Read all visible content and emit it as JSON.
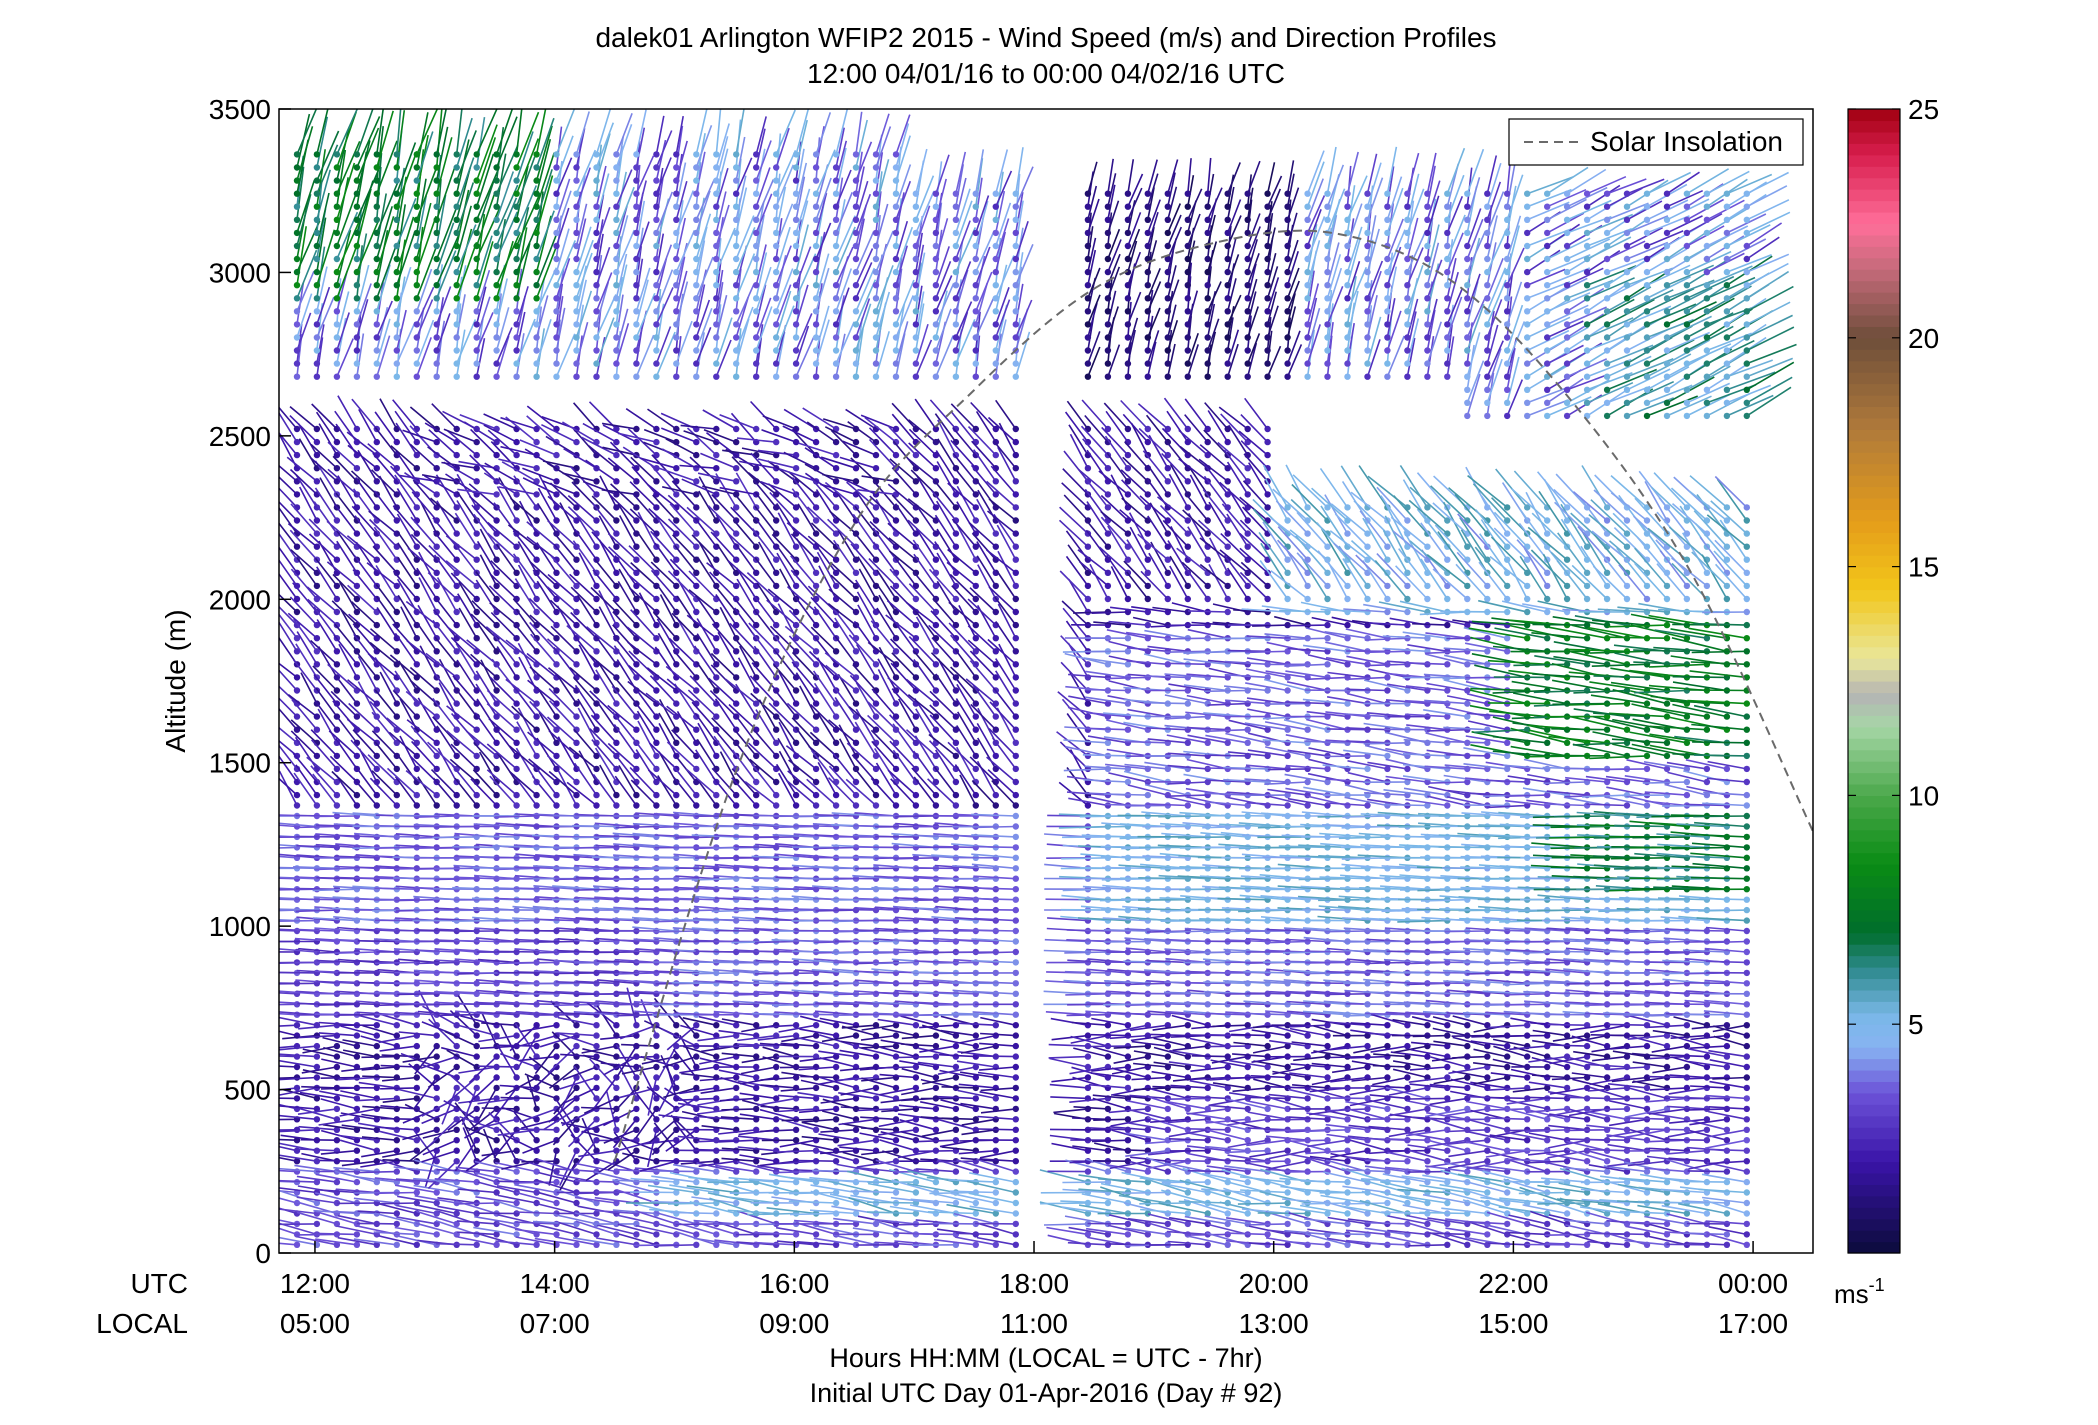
{
  "chart_data": {
    "type": "scatter",
    "subtype": "wind barb profile (wind direction sticks colored by speed)",
    "title_line1": "dalek01 Arlington WFIP2 2015 - Wind Speed (m/s) and Direction Profiles",
    "title_line2": "12:00 04/01/16 to 00:00 04/02/16  UTC",
    "ylabel": "Altitude (m)",
    "xlabel_line1": "Hours HH:MM  (LOCAL = UTC - 7hr)",
    "xlabel_line2": "Initial UTC Day 01-Apr-2016 (Day # 92)",
    "xaxis_row_labels": {
      "utc": "UTC",
      "local": "LOCAL"
    },
    "ylim": [
      0,
      3500
    ],
    "yticks": [
      0,
      500,
      1000,
      1500,
      2000,
      2500,
      3000,
      3500
    ],
    "ytick_labels": [
      "0",
      "500",
      "1000",
      "1500",
      "2000",
      "2500",
      "3000",
      "3500"
    ],
    "xlim_hours_utc": [
      11.7,
      24.5
    ],
    "xticks_hours_utc": [
      12,
      14,
      16,
      18,
      20,
      22,
      24
    ],
    "xtick_labels_utc": [
      "12:00",
      "14:00",
      "16:00",
      "18:00",
      "20:00",
      "22:00",
      "00:00"
    ],
    "xtick_labels_local": [
      "05:00",
      "07:00",
      "09:00",
      "11:00",
      "13:00",
      "15:00",
      "17:00"
    ],
    "legend": {
      "entries": [
        "Solar Insolation"
      ],
      "placement": "top-right",
      "style": "dashed gray line"
    },
    "colorbar": {
      "range": [
        0,
        25
      ],
      "ticks": [
        5,
        10,
        15,
        20,
        25
      ],
      "tick_labels": [
        "5",
        "10",
        "15",
        "20",
        "25"
      ],
      "unit_label": "ms",
      "unit_exponent": "-1",
      "colormap_stops": [
        {
          "v": 0,
          "c": "#0b0b3b"
        },
        {
          "v": 2,
          "c": "#3a14a8"
        },
        {
          "v": 3.5,
          "c": "#6c52d8"
        },
        {
          "v": 4.5,
          "c": "#87b3f2"
        },
        {
          "v": 5.2,
          "c": "#7ab8e8"
        },
        {
          "v": 6.2,
          "c": "#2e8a8e"
        },
        {
          "v": 7.0,
          "c": "#006d2c"
        },
        {
          "v": 8.5,
          "c": "#0a8c14"
        },
        {
          "v": 10,
          "c": "#4ba84b"
        },
        {
          "v": 11.5,
          "c": "#a6d6a6"
        },
        {
          "v": 12.2,
          "c": "#b4b4b4"
        },
        {
          "v": 13,
          "c": "#e9e79a"
        },
        {
          "v": 14.5,
          "c": "#f2c61a"
        },
        {
          "v": 16,
          "c": "#e59d1a"
        },
        {
          "v": 18,
          "c": "#b07a3a"
        },
        {
          "v": 20,
          "c": "#6e4e3a"
        },
        {
          "v": 21.5,
          "c": "#c56a7a"
        },
        {
          "v": 22.5,
          "c": "#ff6f9a"
        },
        {
          "v": 24,
          "c": "#d81e4e"
        },
        {
          "v": 25,
          "c": "#a00010"
        }
      ]
    },
    "solar_insolation_curve": {
      "x_hours_utc": [
        14.5,
        15.5,
        16.5,
        17.5,
        18.5,
        19.5,
        20.5,
        21.5,
        22.5,
        23.5,
        24.5
      ],
      "y_altitude_m": [
        280,
        1460,
        2230,
        2640,
        2950,
        3090,
        3120,
        2970,
        2600,
        2070,
        1290
      ]
    },
    "profiles_time_hours_utc": {
      "segment_1": {
        "start": 11.85,
        "end": 17.95,
        "step": 0.1666
      },
      "segment_2": {
        "start": 18.45,
        "end": 24.05,
        "step": 0.1666
      },
      "data_gap": [
        17.95,
        18.45
      ]
    },
    "wind_field_summary": [
      {
        "altitude_range_m": [
          0,
          250
        ],
        "speed_ms": "2-4",
        "direction": "variable, mostly westerly"
      },
      {
        "altitude_range_m": [
          250,
          700
        ],
        "speed_ms": "1-3",
        "direction": "westerly; light and variable 13:00-15:00"
      },
      {
        "altitude_range_m": [
          700,
          1350
        ],
        "speed_ms": "3-6",
        "direction": "westerly, increasing after 19:00"
      },
      {
        "altitude_range_m": [
          1350,
          2500
        ],
        "speed_ms": "1-3",
        "direction": "northwesterly to westerly; 7-9 m/s around 1500-2000 m after 22:00"
      },
      {
        "altitude_range_m": [
          2600,
          3400
        ],
        "speed_ms": "3-8",
        "direction": "southerly / south-southwesterly"
      }
    ]
  }
}
